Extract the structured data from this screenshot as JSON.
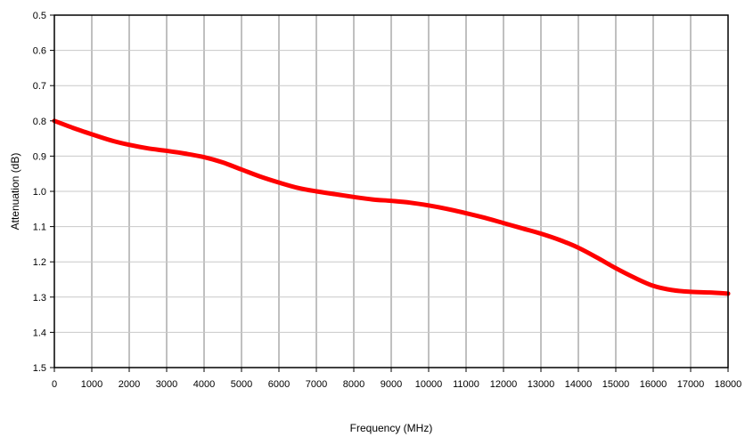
{
  "chart_data": {
    "type": "line",
    "title": "",
    "xlabel": "Frequency (MHz)",
    "ylabel": "Attenuation (dB)",
    "xlim": [
      0,
      18000
    ],
    "ylim": [
      0.5,
      1.5
    ],
    "y_axis_inverted": true,
    "x_ticks": [
      0,
      1000,
      2000,
      3000,
      4000,
      5000,
      6000,
      7000,
      8000,
      9000,
      10000,
      11000,
      12000,
      13000,
      14000,
      15000,
      16000,
      17000,
      18000
    ],
    "x_tick_labels": [
      "0",
      "1000",
      "2000",
      "3000",
      "4000",
      "5000",
      "6000",
      "7000",
      "8000",
      "9000",
      "10000",
      "11000",
      "12000",
      "13000",
      "14000",
      "15000",
      "16000",
      "17000",
      "18000"
    ],
    "y_ticks": [
      0.5,
      0.6,
      0.7,
      0.8,
      0.9,
      1.0,
      1.1,
      1.2,
      1.3,
      1.4,
      1.5
    ],
    "y_tick_labels": [
      "0.5",
      "0.6",
      "0.7",
      "0.8",
      "0.9",
      "1.0",
      "1.1",
      "1.2",
      "1.3",
      "1.4",
      "1.5"
    ],
    "grid": "vertical and horizontal",
    "series": [
      {
        "color": "#ff0000",
        "x": [
          0,
          500,
          1000,
          1500,
          2000,
          2500,
          3000,
          3500,
          4000,
          4500,
          5000,
          5500,
          6000,
          6500,
          7000,
          7500,
          8000,
          8500,
          9000,
          9500,
          10000,
          10500,
          11000,
          11500,
          12000,
          12500,
          13000,
          13500,
          14000,
          14500,
          15000,
          15500,
          16000,
          16500,
          17000,
          17500,
          18000
        ],
        "y": [
          0.8,
          0.82,
          0.838,
          0.855,
          0.868,
          0.878,
          0.885,
          0.893,
          0.903,
          0.918,
          0.938,
          0.958,
          0.975,
          0.99,
          1.0,
          1.008,
          1.016,
          1.023,
          1.027,
          1.032,
          1.04,
          1.05,
          1.062,
          1.075,
          1.09,
          1.105,
          1.12,
          1.138,
          1.16,
          1.188,
          1.218,
          1.245,
          1.268,
          1.28,
          1.285,
          1.287,
          1.29
        ]
      }
    ]
  }
}
